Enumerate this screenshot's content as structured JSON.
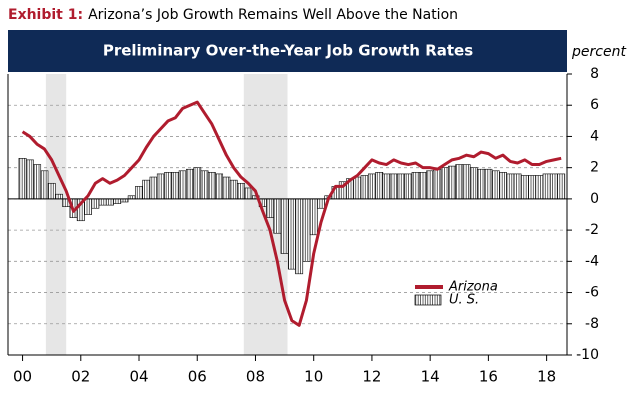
{
  "chart_data": {
    "type": "combo",
    "exhibit_label": "Exhibit 1:",
    "title": "Arizona’s Job Growth Remains Well Above the Nation",
    "subtitle": "Preliminary Over-the-Year Job Growth Rates",
    "y_label": "percent",
    "x": [
      2000,
      2000.25,
      2000.5,
      2000.75,
      2001,
      2001.25,
      2001.5,
      2001.75,
      2002,
      2002.25,
      2002.5,
      2002.75,
      2003,
      2003.25,
      2003.5,
      2003.75,
      2004,
      2004.25,
      2004.5,
      2004.75,
      2005,
      2005.25,
      2005.5,
      2005.75,
      2006,
      2006.25,
      2006.5,
      2006.75,
      2007,
      2007.25,
      2007.5,
      2007.75,
      2008,
      2008.25,
      2008.5,
      2008.75,
      2009,
      2009.25,
      2009.5,
      2009.75,
      2010,
      2010.25,
      2010.5,
      2010.75,
      2011,
      2011.25,
      2011.5,
      2011.75,
      2012,
      2012.25,
      2012.5,
      2012.75,
      2013,
      2013.25,
      2013.5,
      2013.75,
      2014,
      2014.25,
      2014.5,
      2014.75,
      2015,
      2015.25,
      2015.5,
      2015.75,
      2016,
      2016.25,
      2016.5,
      2016.75,
      2017,
      2017.25,
      2017.5,
      2017.75,
      2018,
      2018.25,
      2018.5
    ],
    "series": [
      {
        "name": "Arizona",
        "type": "line",
        "color": "#b01c2e",
        "values": [
          4.3,
          4.0,
          3.5,
          3.2,
          2.5,
          1.5,
          0.5,
          -0.8,
          -0.3,
          0.2,
          1.0,
          1.3,
          1.0,
          1.2,
          1.5,
          2.0,
          2.5,
          3.3,
          4.0,
          4.5,
          5.0,
          5.2,
          5.8,
          6.0,
          6.2,
          5.5,
          4.8,
          3.8,
          2.8,
          2.0,
          1.4,
          1.0,
          0.5,
          -0.8,
          -2.0,
          -4.0,
          -6.5,
          -7.8,
          -8.1,
          -6.5,
          -3.5,
          -1.5,
          0.0,
          0.8,
          0.8,
          1.2,
          1.5,
          2.0,
          2.5,
          2.3,
          2.2,
          2.5,
          2.3,
          2.2,
          2.3,
          2.0,
          2.0,
          1.9,
          2.2,
          2.5,
          2.6,
          2.8,
          2.7,
          3.0,
          2.9,
          2.6,
          2.8,
          2.4,
          2.3,
          2.5,
          2.2,
          2.2,
          2.4,
          2.5,
          2.6
        ]
      },
      {
        "name": "U. S.",
        "type": "bar",
        "color": "#000000",
        "values": [
          2.6,
          2.5,
          2.2,
          1.8,
          1.0,
          0.3,
          -0.5,
          -1.2,
          -1.4,
          -1.0,
          -0.6,
          -0.4,
          -0.4,
          -0.3,
          -0.2,
          0.2,
          0.8,
          1.2,
          1.4,
          1.6,
          1.7,
          1.7,
          1.8,
          1.9,
          2.0,
          1.8,
          1.7,
          1.6,
          1.4,
          1.2,
          1.0,
          0.7,
          0.2,
          -0.5,
          -1.2,
          -2.2,
          -3.5,
          -4.5,
          -4.8,
          -4.0,
          -2.3,
          -0.6,
          0.2,
          0.8,
          1.1,
          1.3,
          1.4,
          1.5,
          1.6,
          1.7,
          1.6,
          1.6,
          1.6,
          1.6,
          1.7,
          1.7,
          1.8,
          1.9,
          2.0,
          2.1,
          2.2,
          2.2,
          2.0,
          1.9,
          1.9,
          1.8,
          1.7,
          1.6,
          1.6,
          1.5,
          1.5,
          1.5,
          1.6,
          1.6,
          1.6
        ]
      }
    ],
    "recessions": [
      [
        2000.8,
        2001.5
      ],
      [
        2007.6,
        2009.1
      ]
    ],
    "xlim": [
      1999.5,
      2018.7
    ],
    "xticks": [
      {
        "value": 2000,
        "label": "00"
      },
      {
        "value": 2002,
        "label": "02"
      },
      {
        "value": 2004,
        "label": "04"
      },
      {
        "value": 2006,
        "label": "06"
      },
      {
        "value": 2008,
        "label": "08"
      },
      {
        "value": 2010,
        "label": "10"
      },
      {
        "value": 2012,
        "label": "12"
      },
      {
        "value": 2014,
        "label": "14"
      },
      {
        "value": 2016,
        "label": "16"
      },
      {
        "value": 2018,
        "label": "18"
      }
    ],
    "ylim": [
      -10,
      8
    ],
    "yticks": [
      8,
      6,
      4,
      2,
      0,
      -2,
      -4,
      -6,
      -8,
      -10
    ],
    "grid": true,
    "legend": "lower right"
  }
}
